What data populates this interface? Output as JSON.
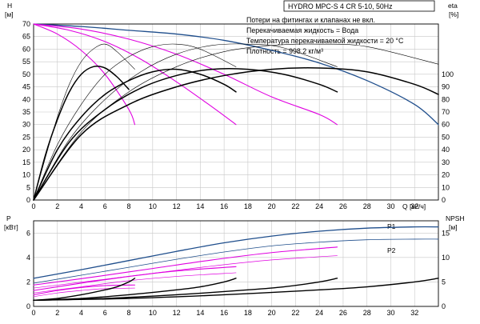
{
  "chart_data": [
    {
      "type": "line",
      "title": "HYDRO MPC-S 4 CR 5-10, 50Hz",
      "notes": [
        "Потери на фитингах и клапанах не вкл.",
        "Перекачиваемая жидкость = Вода",
        "Температура перекачиваемой жидкости = 20 °C",
        "Плотность = 998.2 кг/м³"
      ],
      "y_left_label_top": "H",
      "y_left_label_bottom": "[м]",
      "y_right_label_top": "eta",
      "y_right_label_bottom": "[%]",
      "x_label": "Q [м³/ч]",
      "x_ticks": [
        "0",
        "2",
        "4",
        "6",
        "8",
        "10",
        "12",
        "14",
        "16",
        "18",
        "20",
        "22",
        "24",
        "26",
        "28",
        "30",
        "32"
      ],
      "xlim": [
        0,
        34
      ],
      "y_left_ticks": [
        "0",
        "5",
        "10",
        "15",
        "20",
        "25",
        "30",
        "35",
        "40",
        "45",
        "50",
        "55",
        "60",
        "65",
        "70"
      ],
      "ylim_left": [
        0,
        70
      ],
      "y_right_ticks": [
        "0",
        "10",
        "20",
        "30",
        "40",
        "50",
        "60",
        "70",
        "80",
        "90",
        "100"
      ],
      "ylim_right": [
        0,
        140
      ],
      "grid": true,
      "colors": {
        "max_curve": "#1f4e8c",
        "speed_curves": "#e000e0",
        "efficiency": "#000000"
      },
      "series": [
        {
          "role": "head-max",
          "color": "#1f4e8c",
          "width": 1.3,
          "x": [
            0,
            4,
            8,
            12,
            16,
            20,
            24,
            28,
            32,
            34
          ],
          "y": [
            70,
            69,
            67.5,
            66,
            63.5,
            59.5,
            54.5,
            47.5,
            38,
            30
          ]
        },
        {
          "role": "head-speed-1",
          "color": "#e000e0",
          "width": 1.1,
          "x": [
            0,
            4,
            8,
            12,
            16,
            20,
            24,
            25.5
          ],
          "y": [
            70,
            68,
            64,
            58,
            50,
            41,
            34,
            30
          ]
        },
        {
          "role": "head-speed-2",
          "color": "#e000e0",
          "width": 1.1,
          "x": [
            0,
            3,
            6,
            9,
            12,
            15,
            17
          ],
          "y": [
            70,
            67.5,
            63,
            56,
            47,
            37,
            30
          ]
        },
        {
          "role": "head-speed-3",
          "color": "#e000e0",
          "width": 1.1,
          "x": [
            0,
            2,
            4,
            6,
            8,
            8.5
          ],
          "y": [
            70,
            66,
            59.5,
            50,
            36,
            30
          ]
        },
        {
          "role": "eta-system-1",
          "color": "#000000",
          "width": 1.5,
          "x": [
            0,
            1,
            2,
            3,
            4,
            5,
            6,
            7,
            8
          ],
          "y": [
            0,
            18,
            32,
            43,
            50,
            53,
            52.5,
            49,
            44
          ]
        },
        {
          "role": "eta-system-2",
          "color": "#000000",
          "width": 1.5,
          "x": [
            0,
            2,
            4,
            6,
            8,
            10,
            12,
            14,
            16,
            17
          ],
          "y": [
            0,
            20,
            33,
            42,
            47.5,
            51,
            52,
            50,
            46,
            43
          ]
        },
        {
          "role": "eta-system-3",
          "color": "#000000",
          "width": 1.5,
          "x": [
            0,
            3,
            6,
            9,
            12,
            15,
            18,
            21,
            24,
            25.5
          ],
          "y": [
            0,
            23,
            36,
            44.5,
            49.5,
            52,
            52,
            50,
            46,
            43
          ]
        },
        {
          "role": "eta-system-4",
          "color": "#000000",
          "width": 1.5,
          "x": [
            0,
            4,
            8,
            12,
            16,
            20,
            24,
            28,
            32,
            34
          ],
          "y": [
            0,
            26,
            38,
            45,
            49.5,
            52,
            52.5,
            51,
            46,
            42
          ]
        },
        {
          "role": "eta-thin-1",
          "color": "#000000",
          "width": 0.6,
          "x": [
            0,
            1,
            2,
            3,
            4,
            5,
            6,
            7,
            8.5
          ],
          "y": [
            0,
            17,
            33,
            46,
            55,
            60,
            62,
            59,
            52
          ]
        },
        {
          "role": "eta-thin-2",
          "color": "#000000",
          "width": 0.6,
          "x": [
            0,
            2,
            4,
            6,
            8,
            10,
            12,
            14,
            17
          ],
          "y": [
            0,
            22,
            38,
            50,
            57,
            61,
            62,
            60,
            53
          ]
        },
        {
          "role": "eta-thin-3",
          "color": "#000000",
          "width": 0.6,
          "x": [
            0,
            3,
            6,
            9,
            12,
            15,
            18,
            21,
            25.5
          ],
          "y": [
            0,
            24,
            40,
            51,
            58,
            61.5,
            62,
            60.5,
            53
          ]
        },
        {
          "role": "eta-thin-4",
          "color": "#000000",
          "width": 0.6,
          "x": [
            0,
            4,
            8,
            12,
            16,
            20,
            24,
            28,
            34
          ],
          "y": [
            0,
            27,
            43,
            53,
            59,
            61.5,
            62,
            61,
            54
          ]
        }
      ]
    },
    {
      "type": "line",
      "y_left_label_top": "P",
      "y_left_label_bottom": "[кВт]",
      "y_right_label_top": "NPSH",
      "y_right_label_bottom": "[м]",
      "x_ticks": [
        "0",
        "2",
        "4",
        "6",
        "8",
        "10",
        "12",
        "14",
        "16",
        "18",
        "20",
        "22",
        "24",
        "26",
        "28",
        "30",
        "32"
      ],
      "xlim": [
        0,
        34
      ],
      "y_left_ticks": [
        "0",
        "2",
        "4",
        "6"
      ],
      "ylim_left": [
        0,
        7
      ],
      "y_right_ticks": [
        "0",
        "5",
        "10",
        "15"
      ],
      "ylim_right": [
        0,
        17.5
      ],
      "grid": true,
      "series_labels": [
        "P1",
        "P2"
      ],
      "series": [
        {
          "role": "P1-max",
          "color": "#1f4e8c",
          "width": 1.3,
          "x": [
            0,
            4,
            8,
            12,
            16,
            20,
            24,
            28,
            32,
            34
          ],
          "y": [
            2.3,
            3.0,
            3.75,
            4.5,
            5.2,
            5.75,
            6.15,
            6.4,
            6.5,
            6.5
          ]
        },
        {
          "role": "P2-max",
          "color": "#1f4e8c",
          "width": 0.8,
          "x": [
            0,
            4,
            8,
            12,
            16,
            20,
            24,
            28,
            32,
            34
          ],
          "y": [
            1.9,
            2.55,
            3.2,
            3.85,
            4.45,
            4.95,
            5.25,
            5.45,
            5.5,
            5.5
          ]
        },
        {
          "role": "P1-speed-1",
          "color": "#e000e0",
          "width": 1.1,
          "x": [
            0,
            5,
            10,
            15,
            20,
            25.5
          ],
          "y": [
            1.75,
            2.4,
            3.1,
            3.8,
            4.4,
            4.85
          ]
        },
        {
          "role": "P2-speed-1",
          "color": "#e000e0",
          "width": 0.7,
          "x": [
            0,
            5,
            10,
            15,
            20,
            25.5
          ],
          "y": [
            1.5,
            2.1,
            2.7,
            3.3,
            3.8,
            4.15
          ]
        },
        {
          "role": "P1-speed-2",
          "color": "#e000e0",
          "width": 1.1,
          "x": [
            0,
            4,
            8,
            12,
            17
          ],
          "y": [
            1.3,
            1.9,
            2.45,
            2.9,
            3.25
          ]
        },
        {
          "role": "P2-speed-2",
          "color": "#e000e0",
          "width": 0.7,
          "x": [
            0,
            4,
            8,
            12,
            17
          ],
          "y": [
            1.1,
            1.6,
            2.1,
            2.45,
            2.75
          ]
        },
        {
          "role": "P1-speed-3",
          "color": "#e000e0",
          "width": 1.1,
          "x": [
            0,
            2,
            4,
            6,
            8.5
          ],
          "y": [
            0.95,
            1.3,
            1.55,
            1.7,
            1.75
          ]
        },
        {
          "role": "P2-speed-3",
          "color": "#e000e0",
          "width": 0.7,
          "x": [
            0,
            2,
            4,
            6,
            8.5
          ],
          "y": [
            0.8,
            1.1,
            1.3,
            1.45,
            1.5
          ]
        },
        {
          "role": "NPSH-1",
          "color": "#000000",
          "width": 1.4,
          "x": [
            0,
            2,
            4,
            6,
            7,
            8,
            8.5
          ],
          "y": [
            0.5,
            0.65,
            0.95,
            1.35,
            1.6,
            2.0,
            2.3
          ]
        },
        {
          "role": "NPSH-2",
          "color": "#000000",
          "width": 1.4,
          "x": [
            0,
            4,
            8,
            12,
            14,
            16,
            17
          ],
          "y": [
            0.5,
            0.65,
            0.95,
            1.35,
            1.6,
            2.0,
            2.3
          ]
        },
        {
          "role": "NPSH-3",
          "color": "#000000",
          "width": 1.4,
          "x": [
            0,
            6,
            12,
            18,
            21,
            24,
            25.5
          ],
          "y": [
            0.5,
            0.65,
            0.95,
            1.35,
            1.6,
            2.0,
            2.3
          ]
        },
        {
          "role": "NPSH-4",
          "color": "#000000",
          "width": 1.4,
          "x": [
            0,
            8,
            16,
            24,
            28,
            32,
            34
          ],
          "y": [
            0.5,
            0.65,
            0.95,
            1.35,
            1.6,
            2.0,
            2.3
          ]
        }
      ]
    }
  ]
}
